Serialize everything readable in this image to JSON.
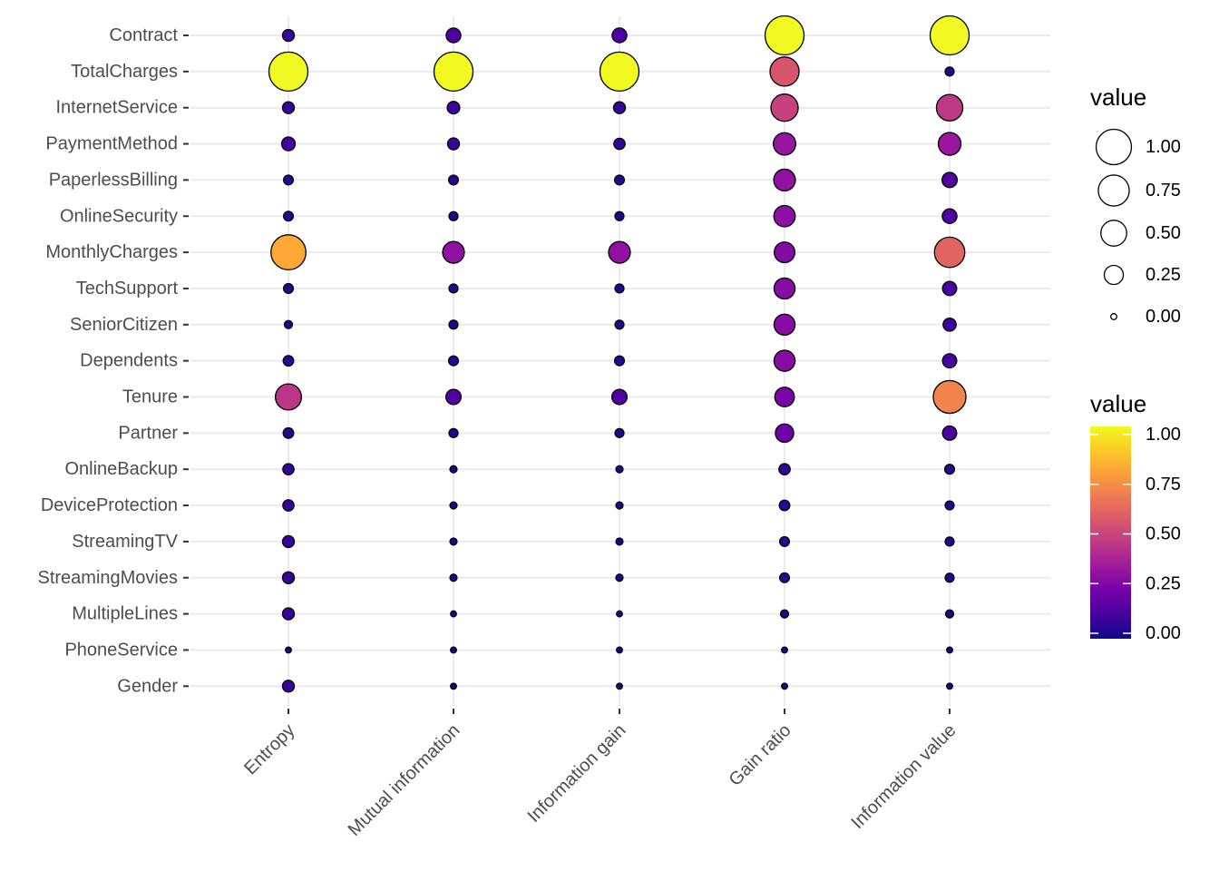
{
  "chart_data": {
    "type": "scatter",
    "x": [
      "Entropy",
      "Mutual information",
      "Information gain",
      "Gain ratio",
      "Information value"
    ],
    "y": [
      "Contract",
      "TotalCharges",
      "InternetService",
      "PaymentMethod",
      "PaperlessBilling",
      "OnlineSecurity",
      "MonthlyCharges",
      "TechSupport",
      "SeniorCitizen",
      "Dependents",
      "Tenure",
      "Partner",
      "OnlineBackup",
      "DeviceProtection",
      "StreamingTV",
      "StreamingMovies",
      "MultipleLines",
      "PhoneService",
      "Gender"
    ],
    "values": [
      [
        0.08,
        0.13,
        0.13,
        1.0,
        1.0
      ],
      [
        1.0,
        1.0,
        1.0,
        0.55,
        0.04
      ],
      [
        0.08,
        0.09,
        0.08,
        0.48,
        0.45
      ],
      [
        0.11,
        0.08,
        0.07,
        0.32,
        0.33
      ],
      [
        0.05,
        0.05,
        0.05,
        0.3,
        0.14
      ],
      [
        0.05,
        0.04,
        0.04,
        0.29,
        0.13
      ],
      [
        0.8,
        0.3,
        0.3,
        0.27,
        0.6
      ],
      [
        0.05,
        0.04,
        0.04,
        0.28,
        0.12
      ],
      [
        0.03,
        0.04,
        0.04,
        0.28,
        0.1
      ],
      [
        0.06,
        0.05,
        0.05,
        0.28,
        0.12
      ],
      [
        0.44,
        0.14,
        0.14,
        0.24,
        0.7
      ],
      [
        0.06,
        0.04,
        0.04,
        0.21,
        0.12
      ],
      [
        0.07,
        0.02,
        0.02,
        0.07,
        0.05
      ],
      [
        0.07,
        0.02,
        0.02,
        0.06,
        0.04
      ],
      [
        0.08,
        0.02,
        0.02,
        0.05,
        0.04
      ],
      [
        0.08,
        0.02,
        0.02,
        0.05,
        0.04
      ],
      [
        0.08,
        0.01,
        0.01,
        0.03,
        0.03
      ],
      [
        0.01,
        0.01,
        0.01,
        0.01,
        0.01
      ],
      [
        0.08,
        0.01,
        0.01,
        0.01,
        0.01
      ]
    ],
    "legends": [
      {
        "type": "size",
        "title": "value",
        "labels": [
          "1.00",
          "0.75",
          "0.50",
          "0.25",
          "0.00"
        ],
        "breaks": [
          1.0,
          0.75,
          0.5,
          0.25,
          0.0
        ]
      },
      {
        "type": "color",
        "title": "value",
        "labels": [
          "1.00",
          "0.75",
          "0.50",
          "0.25",
          "0.00"
        ],
        "breaks": [
          1.0,
          0.75,
          0.5,
          0.25,
          0.0
        ]
      }
    ],
    "colormap": "plasma",
    "colormap_stops": [
      "#0d0887",
      "#46039f",
      "#7201a8",
      "#9c179e",
      "#bd3786",
      "#d8576b",
      "#ed7953",
      "#fb9f3a",
      "#fdca26",
      "#f0f921"
    ],
    "grid": true,
    "legend_position": "right",
    "title": "",
    "xlabel": "",
    "ylabel": ""
  }
}
